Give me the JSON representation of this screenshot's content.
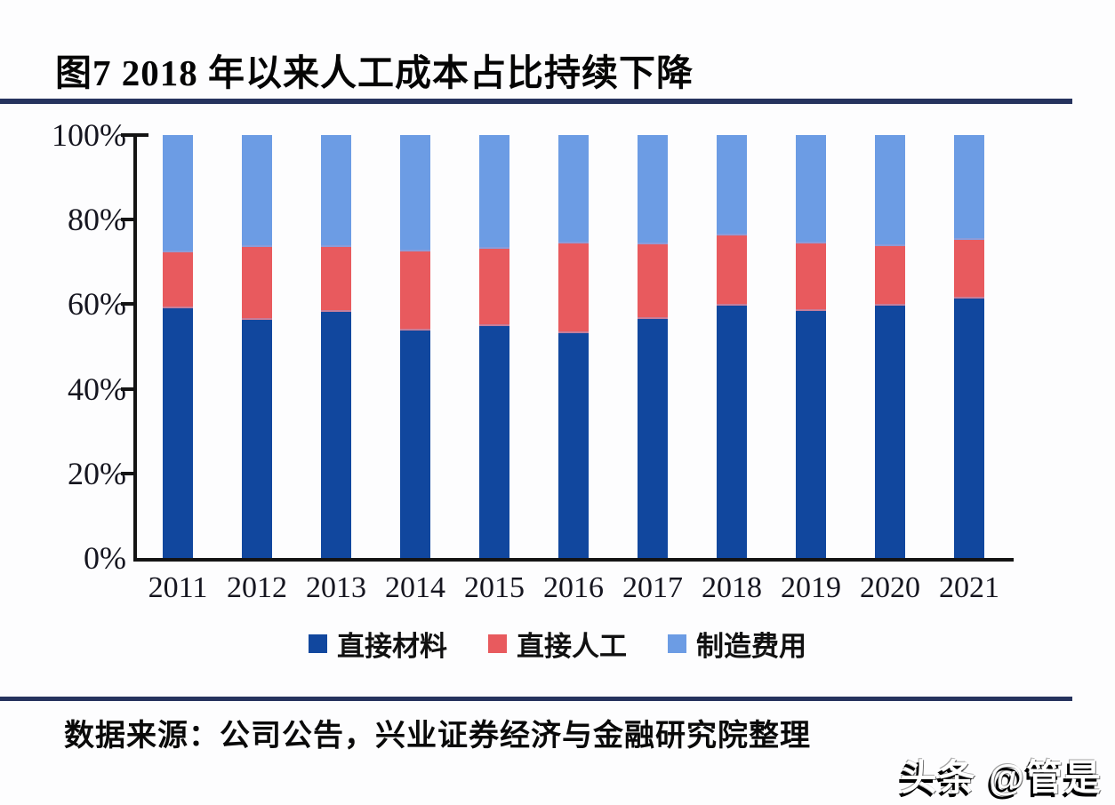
{
  "header": {
    "title": "图7 2018 年以来人工成本占比持续下降"
  },
  "chart_data": {
    "type": "bar",
    "stacked": true,
    "title": "图7 2018 年以来人工成本占比持续下降",
    "categories": [
      "2011",
      "2012",
      "2013",
      "2014",
      "2015",
      "2016",
      "2017",
      "2018",
      "2019",
      "2020",
      "2021"
    ],
    "series": [
      {
        "name": "直接材料",
        "color": "#11479E",
        "values": [
          59.0,
          56.2,
          58.1,
          53.7,
          54.8,
          53.2,
          56.6,
          59.7,
          58.3,
          59.7,
          61.4
        ]
      },
      {
        "name": "直接人工",
        "color": "#E85A5E",
        "values": [
          13.2,
          17.3,
          15.4,
          18.8,
          18.3,
          21.2,
          17.6,
          16.6,
          16.1,
          14.0,
          13.8
        ]
      },
      {
        "name": "制造费用",
        "color": "#6C9CE4",
        "values": [
          27.8,
          26.5,
          26.5,
          27.5,
          26.9,
          25.6,
          25.8,
          23.7,
          25.6,
          26.3,
          24.8
        ]
      }
    ],
    "xlabel": "",
    "ylabel": "",
    "ylim": [
      0,
      100
    ],
    "y_ticks": {
      "values": [
        0,
        20,
        40,
        60,
        80,
        100
      ],
      "labels": [
        "0%",
        "20%",
        "40%",
        "60%",
        "80%",
        "100%"
      ]
    },
    "grid": false,
    "legend_position": "bottom"
  },
  "footer": {
    "source": "数据来源：公司公告，兴业证券经济与金融研究院整理"
  },
  "watermark": {
    "text": "头条 @管是"
  },
  "colors": {
    "divider_rule": "#26335E",
    "axis": "#141414",
    "background": "#FDFDFE"
  }
}
